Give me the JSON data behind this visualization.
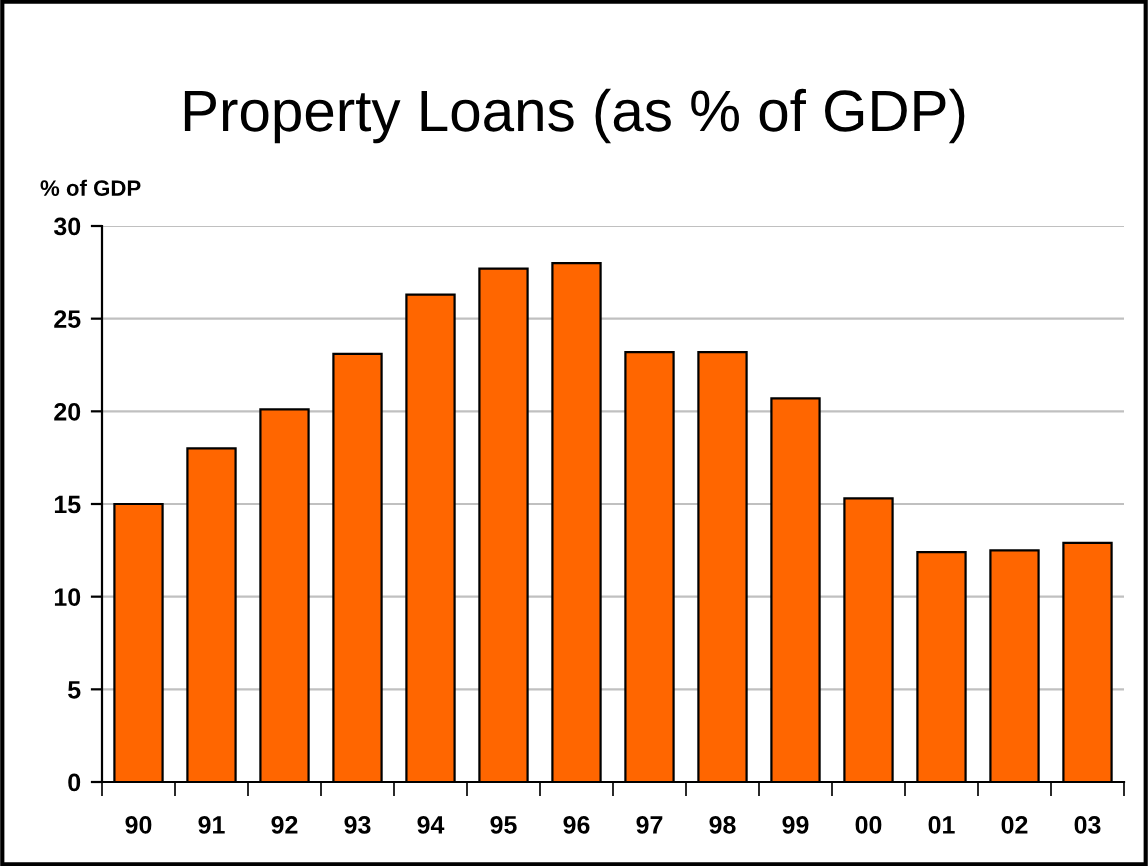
{
  "chart_data": {
    "type": "bar",
    "title": "Property Loans (as % of GDP)",
    "ylabel": "% of GDP",
    "categories": [
      "90",
      "91",
      "92",
      "93",
      "94",
      "95",
      "96",
      "97",
      "98",
      "99",
      "00",
      "01",
      "02",
      "03"
    ],
    "values": [
      15.0,
      18.0,
      20.1,
      23.1,
      26.3,
      27.7,
      28.0,
      23.2,
      23.2,
      20.7,
      15.3,
      12.4,
      12.5,
      12.9
    ],
    "color": "#ff6600",
    "ylim": [
      0,
      30
    ],
    "yticks": [
      0,
      5,
      10,
      15,
      20,
      25,
      30
    ],
    "grid": "y"
  }
}
